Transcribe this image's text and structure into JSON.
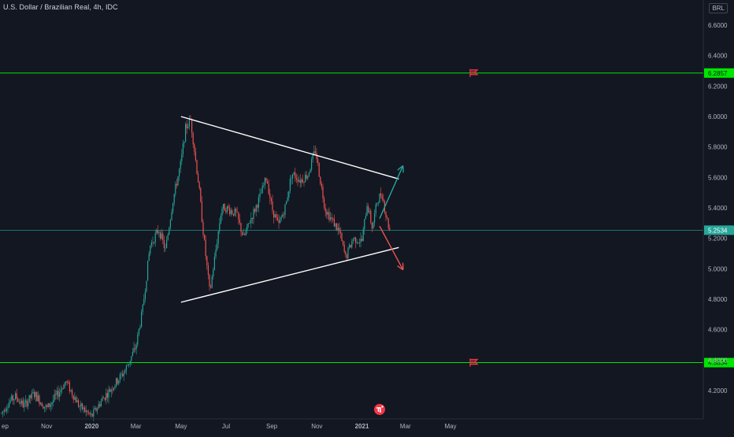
{
  "header": {
    "title": "U.S. Dollar / Brazilian Real, 4h, IDC",
    "currency": "BRL"
  },
  "colors": {
    "background": "#131722",
    "candle_up": "#26a69a",
    "candle_down": "#ef5350",
    "level_line": "#00e600",
    "price_line": "#26a69a",
    "trendline": "#ffffff",
    "arrow_up": "#26a69a",
    "arrow_down": "#ef5350",
    "axis_text": "#b2b5be"
  },
  "icons": {
    "flag": "red-flag-icon",
    "logo": "tradingview-logo-icon"
  },
  "chart_data": {
    "type": "candlestick",
    "title": "U.S. Dollar / Brazilian Real, 4h, IDC",
    "x_tick_labels": [
      "ep",
      "Nov",
      "2020",
      "Mar",
      "May",
      "Jul",
      "Sep",
      "Nov",
      "2021",
      "Mar",
      "May"
    ],
    "y_ticks": [
      "6.6000",
      "6.4000",
      "6.2000",
      "6.0000",
      "5.8000",
      "5.6000",
      "5.4000",
      "5.2000",
      "5.0000",
      "4.8000",
      "4.6000",
      "4.4000",
      "4.2000"
    ],
    "ylim": [
      4.07,
      6.69
    ],
    "levels": [
      {
        "name": "resistance",
        "value": 6.2857,
        "label": "6.2857"
      },
      {
        "name": "support",
        "value": 4.3834,
        "label": "4.3834"
      }
    ],
    "last_price": {
      "value": 5.2534,
      "label": "5.2534"
    },
    "trendlines": [
      {
        "name": "upper-trendline",
        "from": [
          "2020-05-01",
          6.0
        ],
        "to": [
          "2021-02-20",
          5.59
        ]
      },
      {
        "name": "lower-trendline",
        "from": [
          "2020-05-01",
          4.78
        ],
        "to": [
          "2021-02-20",
          5.14
        ]
      }
    ],
    "arrows": [
      {
        "name": "breakout-up-arrow",
        "direction": "up",
        "from": [
          "2021-01-25",
          5.33
        ],
        "to": [
          "2021-02-25",
          5.67
        ]
      },
      {
        "name": "breakout-down-arrow",
        "direction": "down",
        "from": [
          "2021-01-25",
          5.28
        ],
        "to": [
          "2021-02-25",
          5.0
        ]
      }
    ],
    "path_points": [
      [
        "2019-09-01",
        4.05
      ],
      [
        "2019-09-10",
        4.12
      ],
      [
        "2019-09-20",
        4.16
      ],
      [
        "2019-10-01",
        4.1
      ],
      [
        "2019-10-15",
        4.18
      ],
      [
        "2019-11-01",
        4.08
      ],
      [
        "2019-11-15",
        4.17
      ],
      [
        "2019-11-27",
        4.26
      ],
      [
        "2019-12-15",
        4.1
      ],
      [
        "2020-01-01",
        4.03
      ],
      [
        "2020-01-15",
        4.14
      ],
      [
        "2020-02-01",
        4.24
      ],
      [
        "2020-02-15",
        4.33
      ],
      [
        "2020-03-01",
        4.49
      ],
      [
        "2020-03-10",
        4.73
      ],
      [
        "2020-03-20",
        5.15
      ],
      [
        "2020-04-01",
        5.26
      ],
      [
        "2020-04-10",
        5.12
      ],
      [
        "2020-04-20",
        5.45
      ],
      [
        "2020-05-01",
        5.7
      ],
      [
        "2020-05-07",
        5.92
      ],
      [
        "2020-05-14",
        5.98
      ],
      [
        "2020-05-25",
        5.55
      ],
      [
        "2020-06-01",
        5.2
      ],
      [
        "2020-06-09",
        4.84
      ],
      [
        "2020-06-15",
        5.05
      ],
      [
        "2020-06-25",
        5.4
      ],
      [
        "2020-07-01",
        5.4
      ],
      [
        "2020-07-15",
        5.36
      ],
      [
        "2020-07-25",
        5.2
      ],
      [
        "2020-08-01",
        5.3
      ],
      [
        "2020-08-15",
        5.46
      ],
      [
        "2020-08-25",
        5.6
      ],
      [
        "2020-09-01",
        5.4
      ],
      [
        "2020-09-10",
        5.28
      ],
      [
        "2020-09-20",
        5.42
      ],
      [
        "2020-09-28",
        5.63
      ],
      [
        "2020-10-10",
        5.58
      ],
      [
        "2020-10-20",
        5.62
      ],
      [
        "2020-10-30",
        5.78
      ],
      [
        "2020-11-05",
        5.6
      ],
      [
        "2020-11-12",
        5.4
      ],
      [
        "2020-11-20",
        5.33
      ],
      [
        "2020-12-01",
        5.25
      ],
      [
        "2020-12-10",
        5.07
      ],
      [
        "2020-12-20",
        5.2
      ],
      [
        "2021-01-01",
        5.18
      ],
      [
        "2021-01-08",
        5.43
      ],
      [
        "2021-01-15",
        5.27
      ],
      [
        "2021-01-22",
        5.45
      ],
      [
        "2021-01-28",
        5.5
      ],
      [
        "2021-02-03",
        5.34
      ],
      [
        "2021-02-08",
        5.25
      ]
    ]
  }
}
